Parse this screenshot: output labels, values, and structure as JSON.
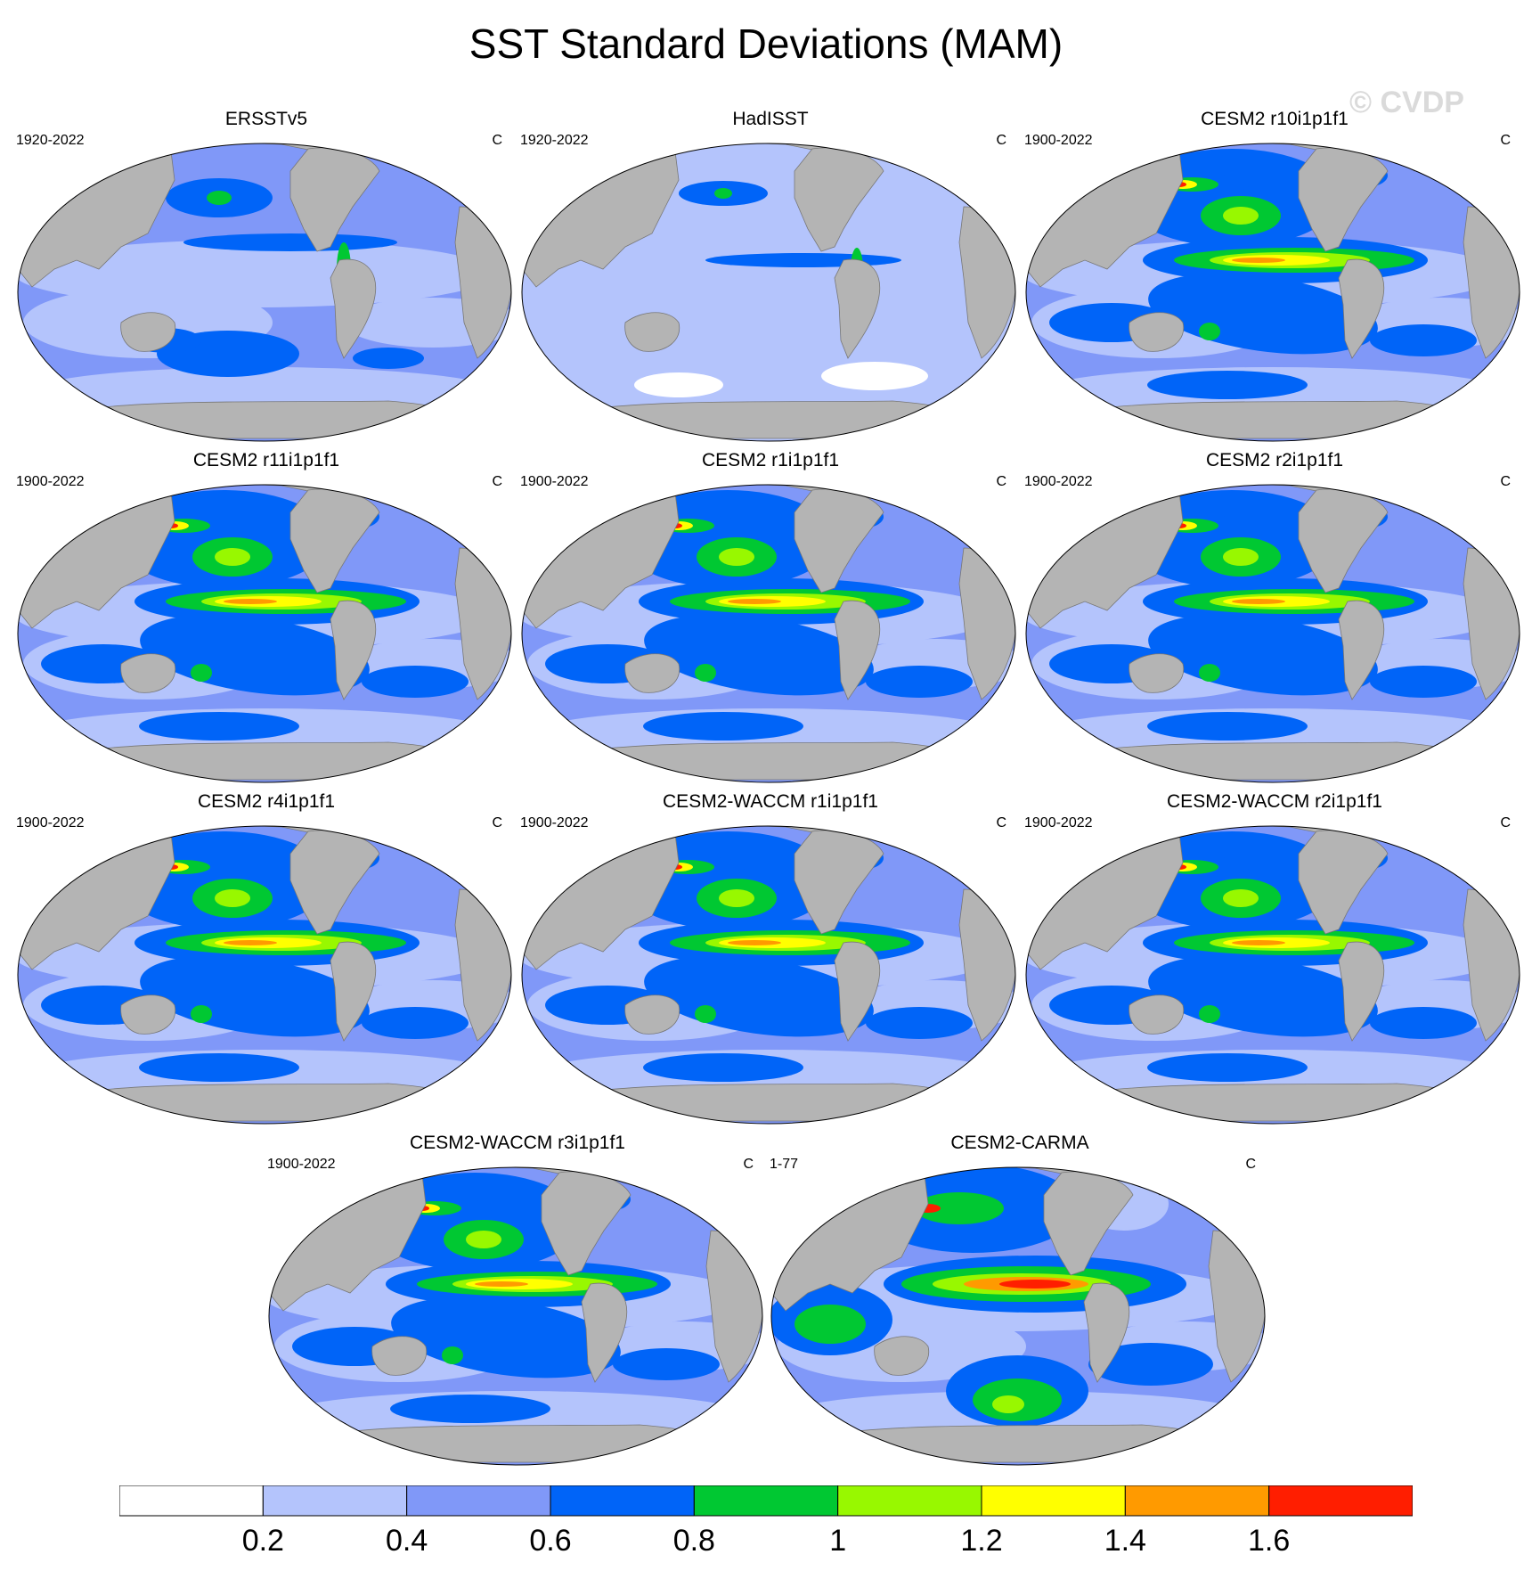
{
  "title": "SST Standard Deviations (MAM)",
  "watermark": "© CVDP",
  "panels": [
    {
      "title": "ERSSTv5",
      "period": "1920-2022",
      "units": "C",
      "style": "obs"
    },
    {
      "title": "HadISST",
      "period": "1920-2022",
      "units": "C",
      "style": "obs2"
    },
    {
      "title": "CESM2 r10i1p1f1",
      "period": "1900-2022",
      "units": "C",
      "style": "model"
    },
    {
      "title": "CESM2 r11i1p1f1",
      "period": "1900-2022",
      "units": "C",
      "style": "model"
    },
    {
      "title": "CESM2 r1i1p1f1",
      "period": "1900-2022",
      "units": "C",
      "style": "model"
    },
    {
      "title": "CESM2 r2i1p1f1",
      "period": "1900-2022",
      "units": "C",
      "style": "model"
    },
    {
      "title": "CESM2 r4i1p1f1",
      "period": "1900-2022",
      "units": "C",
      "style": "model"
    },
    {
      "title": "CESM2-WACCM r1i1p1f1",
      "period": "1900-2022",
      "units": "C",
      "style": "model"
    },
    {
      "title": "CESM2-WACCM r2i1p1f1",
      "period": "1900-2022",
      "units": "C",
      "style": "model"
    },
    {
      "title": "CESM2-WACCM r3i1p1f1",
      "period": "1900-2022",
      "units": "C",
      "style": "model"
    },
    {
      "title": "CESM2-CARMA",
      "period": "1-77",
      "units": "C",
      "style": "carma"
    }
  ],
  "colorbar": {
    "colors": [
      "#ffffff",
      "#b4c4fc",
      "#8098f8",
      "#0064f8",
      "#00c832",
      "#98f800",
      "#ffff00",
      "#ff9a00",
      "#ff1e00"
    ],
    "labels": [
      "0.2",
      "0.4",
      "0.6",
      "0.8",
      "1",
      "1.2",
      "1.4",
      "1.6"
    ]
  }
}
